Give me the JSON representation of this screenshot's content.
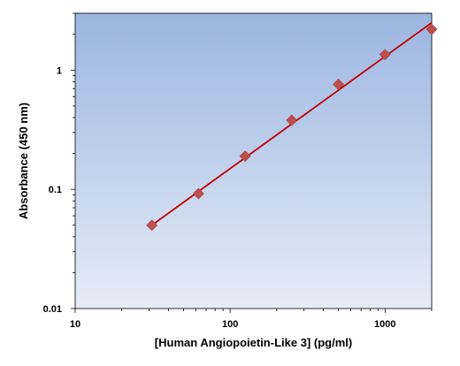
{
  "chart_data": {
    "type": "scatter",
    "title": "",
    "xlabel": "[Human Angiopoietin-Like 3] (pg/ml)",
    "ylabel": "Absorbance (450 nm)",
    "x_scale": "log",
    "y_scale": "log",
    "xlim": [
      10,
      2000
    ],
    "ylim": [
      0.01,
      3
    ],
    "x_ticks": [
      10,
      100,
      1000
    ],
    "x_tick_labels": [
      "10",
      "100",
      "1000"
    ],
    "y_ticks": [
      0.01,
      0.1,
      1
    ],
    "y_tick_labels": [
      "0.01",
      "0.1",
      "1"
    ],
    "grid": false,
    "legend": "none",
    "series": [
      {
        "points": [
          {
            "x": 31.25,
            "y": 0.05
          },
          {
            "x": 62.5,
            "y": 0.092
          },
          {
            "x": 125,
            "y": 0.19
          },
          {
            "x": 250,
            "y": 0.38
          },
          {
            "x": 500,
            "y": 0.76
          },
          {
            "x": 1000,
            "y": 1.35
          },
          {
            "x": 2000,
            "y": 2.2
          }
        ],
        "marker": "diamond",
        "marker_color": "#c0504d"
      }
    ],
    "fit_line": {
      "x": [
        31.25,
        2000
      ],
      "y": [
        0.05,
        2.5
      ],
      "color": "#c00000"
    },
    "background_gradient": [
      "#9bb5e1",
      "#e6ecf7"
    ]
  }
}
